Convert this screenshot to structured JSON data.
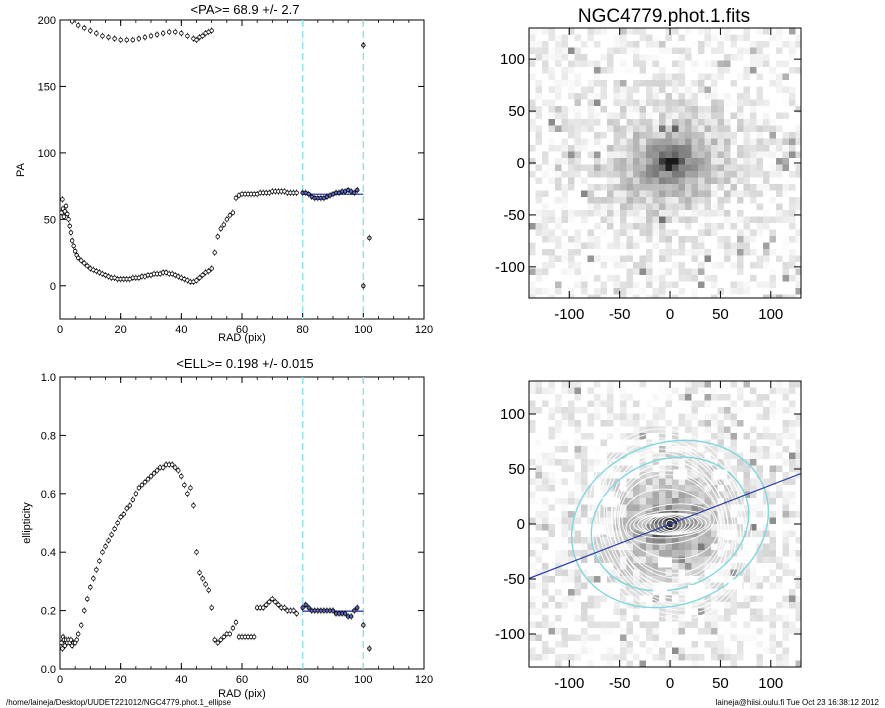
{
  "footer": {
    "left": "/home/laineja/Desktop/UUDET221012/NGC4779.phot.1_ellipse",
    "right": "laineja@hiisi.oulu.fi  Tue Oct 23 16:38:12 2012"
  },
  "colors": {
    "fit_line": "#2b3fa6",
    "guide": "#8fe3e8",
    "points": "#000000",
    "contour": "#ffffff",
    "ellipse_outline": "#7fd8dd"
  },
  "chart_data": [
    {
      "id": "pa",
      "type": "scatter",
      "title": "<PA>=  68.9 +/-   2.7",
      "xlabel": "RAD (pix)",
      "ylabel": "PA",
      "xlim": [
        0,
        120
      ],
      "ylim": [
        -25,
        200
      ],
      "xticks": [
        "0",
        "20",
        "40",
        "60",
        "80",
        "100",
        "120"
      ],
      "yticks": [
        "0",
        "50",
        "100",
        "150",
        "200"
      ],
      "vlines": [
        80,
        100
      ],
      "fit": {
        "x": [
          80,
          100
        ],
        "y": 68.9
      },
      "upper_branch": [
        [
          2,
          202
        ],
        [
          4,
          199
        ],
        [
          6,
          196
        ],
        [
          8,
          194
        ],
        [
          10,
          192
        ],
        [
          12,
          190
        ],
        [
          14,
          188
        ],
        [
          16,
          187
        ],
        [
          18,
          186
        ],
        [
          20,
          185
        ],
        [
          22,
          185
        ],
        [
          24,
          185
        ],
        [
          26,
          186
        ],
        [
          28,
          187
        ],
        [
          30,
          188
        ],
        [
          32,
          189
        ],
        [
          34,
          190
        ],
        [
          36,
          191
        ],
        [
          38,
          191
        ],
        [
          40,
          190
        ],
        [
          42,
          188
        ],
        [
          44,
          186
        ],
        [
          45,
          185
        ],
        [
          46,
          187
        ],
        [
          47,
          188
        ],
        [
          48,
          190
        ],
        [
          49,
          191
        ],
        [
          50,
          192
        ]
      ],
      "lower_branch": [
        [
          0.5,
          55
        ],
        [
          0.8,
          65
        ],
        [
          1.0,
          58
        ],
        [
          1.3,
          52
        ],
        [
          1.6,
          56
        ],
        [
          2,
          60
        ],
        [
          2.4,
          54
        ],
        [
          2.8,
          50
        ],
        [
          3.2,
          45
        ],
        [
          3.6,
          40
        ],
        [
          4,
          34
        ],
        [
          4.5,
          30
        ],
        [
          5,
          26
        ],
        [
          5.5,
          23
        ],
        [
          6,
          21
        ],
        [
          7,
          19
        ],
        [
          8,
          17
        ],
        [
          9,
          15
        ],
        [
          10,
          13
        ],
        [
          11,
          12
        ],
        [
          12,
          11
        ],
        [
          13,
          10
        ],
        [
          14,
          9
        ],
        [
          15,
          8
        ],
        [
          16,
          7
        ],
        [
          17,
          6
        ],
        [
          18,
          6
        ],
        [
          19,
          5
        ],
        [
          20,
          5
        ],
        [
          21,
          5
        ],
        [
          22,
          5
        ],
        [
          23,
          5
        ],
        [
          24,
          6
        ],
        [
          25,
          6
        ],
        [
          26,
          6
        ],
        [
          27,
          7
        ],
        [
          28,
          7
        ],
        [
          29,
          8
        ],
        [
          30,
          8
        ],
        [
          31,
          9
        ],
        [
          32,
          9
        ],
        [
          33,
          9
        ],
        [
          34,
          10
        ],
        [
          35,
          10
        ],
        [
          36,
          9
        ],
        [
          37,
          9
        ],
        [
          38,
          8
        ],
        [
          39,
          7
        ],
        [
          40,
          6
        ],
        [
          41,
          5
        ],
        [
          42,
          4
        ],
        [
          43,
          3
        ],
        [
          44,
          3
        ],
        [
          45,
          4
        ],
        [
          46,
          6
        ],
        [
          47,
          8
        ],
        [
          48,
          10
        ],
        [
          49,
          11
        ],
        [
          50,
          13
        ],
        [
          51,
          25
        ],
        [
          52,
          37
        ],
        [
          53,
          43
        ],
        [
          54,
          46
        ],
        [
          55,
          50
        ],
        [
          56,
          53
        ],
        [
          57,
          55
        ],
        [
          58,
          66
        ],
        [
          59,
          68
        ],
        [
          60,
          69
        ],
        [
          61,
          69
        ],
        [
          62,
          69
        ],
        [
          63,
          69
        ],
        [
          64,
          69
        ],
        [
          65,
          69
        ],
        [
          66,
          70
        ],
        [
          67,
          70
        ],
        [
          68,
          70
        ],
        [
          69,
          70
        ],
        [
          70,
          71
        ],
        [
          71,
          71
        ],
        [
          72,
          71
        ],
        [
          73,
          71
        ],
        [
          74,
          71
        ],
        [
          75,
          70
        ],
        [
          76,
          70
        ],
        [
          77,
          70
        ],
        [
          78,
          70
        ]
      ],
      "fit_points": [
        [
          80,
          70
        ],
        [
          81,
          70
        ],
        [
          82,
          69
        ],
        [
          83,
          67
        ],
        [
          84,
          66
        ],
        [
          85,
          66
        ],
        [
          86,
          66
        ],
        [
          87,
          66
        ],
        [
          88,
          67
        ],
        [
          89,
          68
        ],
        [
          90,
          69
        ],
        [
          91,
          70
        ],
        [
          92,
          70
        ],
        [
          93,
          71
        ],
        [
          94,
          71
        ],
        [
          95,
          72
        ],
        [
          96,
          71
        ],
        [
          97,
          70
        ],
        [
          98,
          72
        ]
      ],
      "outliers": [
        [
          100,
          0
        ],
        [
          100,
          181
        ],
        [
          102,
          36
        ]
      ]
    },
    {
      "id": "ell",
      "type": "scatter",
      "title": "<ELL>= 0.198 +/-  0.015",
      "xlabel": "RAD (pix)",
      "ylabel": "ellipticity",
      "xlim": [
        0,
        120
      ],
      "ylim": [
        0,
        1
      ],
      "xticks": [
        "0",
        "20",
        "40",
        "60",
        "80",
        "100",
        "120"
      ],
      "yticks": [
        "0.0",
        "0.2",
        "0.4",
        "0.6",
        "0.8",
        "1.0"
      ],
      "vlines": [
        80,
        100
      ],
      "fit": {
        "x": [
          80,
          100
        ],
        "y": 0.198
      },
      "points": [
        [
          0.5,
          0.09
        ],
        [
          0.8,
          0.07
        ],
        [
          1.0,
          0.11
        ],
        [
          1.3,
          0.1
        ],
        [
          1.6,
          0.08
        ],
        [
          2,
          0.1
        ],
        [
          2.4,
          0.09
        ],
        [
          2.8,
          0.1
        ],
        [
          3.2,
          0.09
        ],
        [
          3.6,
          0.1
        ],
        [
          4,
          0.08
        ],
        [
          4.5,
          0.09
        ],
        [
          5,
          0.09
        ],
        [
          5.5,
          0.1
        ],
        [
          6,
          0.12
        ],
        [
          7,
          0.15
        ],
        [
          8,
          0.2
        ],
        [
          9,
          0.24
        ],
        [
          10,
          0.28
        ],
        [
          11,
          0.31
        ],
        [
          12,
          0.34
        ],
        [
          13,
          0.37
        ],
        [
          14,
          0.4
        ],
        [
          15,
          0.42
        ],
        [
          16,
          0.44
        ],
        [
          17,
          0.46
        ],
        [
          18,
          0.48
        ],
        [
          19,
          0.5
        ],
        [
          20,
          0.52
        ],
        [
          21,
          0.53
        ],
        [
          22,
          0.55
        ],
        [
          23,
          0.56
        ],
        [
          24,
          0.58
        ],
        [
          25,
          0.6
        ],
        [
          26,
          0.62
        ],
        [
          27,
          0.63
        ],
        [
          28,
          0.64
        ],
        [
          29,
          0.65
        ],
        [
          30,
          0.66
        ],
        [
          31,
          0.67
        ],
        [
          32,
          0.68
        ],
        [
          33,
          0.69
        ],
        [
          34,
          0.69
        ],
        [
          35,
          0.7
        ],
        [
          36,
          0.7
        ],
        [
          37,
          0.7
        ],
        [
          38,
          0.69
        ],
        [
          39,
          0.68
        ],
        [
          40,
          0.66
        ],
        [
          41,
          0.63
        ],
        [
          42,
          0.6
        ],
        [
          43,
          0.62
        ],
        [
          44,
          0.56
        ],
        [
          45,
          0.4
        ],
        [
          46,
          0.33
        ],
        [
          47,
          0.31
        ],
        [
          48,
          0.29
        ],
        [
          49,
          0.27
        ],
        [
          50,
          0.21
        ],
        [
          51,
          0.1
        ],
        [
          52,
          0.09
        ],
        [
          53,
          0.1
        ],
        [
          54,
          0.11
        ],
        [
          55,
          0.12
        ],
        [
          56,
          0.12
        ],
        [
          57,
          0.14
        ],
        [
          58,
          0.16
        ],
        [
          59,
          0.11
        ],
        [
          60,
          0.11
        ],
        [
          61,
          0.11
        ],
        [
          62,
          0.11
        ],
        [
          63,
          0.11
        ],
        [
          64,
          0.11
        ],
        [
          65,
          0.21
        ],
        [
          66,
          0.21
        ],
        [
          67,
          0.21
        ],
        [
          68,
          0.22
        ],
        [
          69,
          0.23
        ],
        [
          70,
          0.24
        ],
        [
          71,
          0.23
        ],
        [
          72,
          0.22
        ],
        [
          73,
          0.21
        ],
        [
          74,
          0.21
        ],
        [
          75,
          0.2
        ],
        [
          76,
          0.2
        ],
        [
          77,
          0.2
        ],
        [
          78,
          0.19
        ]
      ],
      "fit_points": [
        [
          80,
          0.21
        ],
        [
          81,
          0.22
        ],
        [
          82,
          0.21
        ],
        [
          83,
          0.2
        ],
        [
          84,
          0.2
        ],
        [
          85,
          0.2
        ],
        [
          86,
          0.2
        ],
        [
          87,
          0.2
        ],
        [
          88,
          0.2
        ],
        [
          89,
          0.2
        ],
        [
          90,
          0.2
        ],
        [
          91,
          0.19
        ],
        [
          92,
          0.19
        ],
        [
          93,
          0.19
        ],
        [
          94,
          0.19
        ],
        [
          95,
          0.18
        ],
        [
          96,
          0.18
        ],
        [
          97,
          0.2
        ],
        [
          98,
          0.21
        ]
      ],
      "outliers": [
        [
          100,
          0.15
        ],
        [
          102,
          0.07
        ]
      ]
    },
    {
      "id": "img1",
      "type": "heatmap",
      "title": "NGC4779.phot.1.fits",
      "xlim": [
        -140,
        130
      ],
      "ylim": [
        -130,
        130
      ],
      "xticks": [
        "-100",
        "-50",
        "0",
        "50",
        "100"
      ],
      "yticks": [
        "100",
        "50",
        "0",
        "-50",
        "-100"
      ]
    },
    {
      "id": "img2",
      "type": "heatmap",
      "title": "",
      "xlim": [
        -140,
        130
      ],
      "ylim": [
        -130,
        130
      ],
      "xticks": [
        "-100",
        "-50",
        "0",
        "50",
        "100"
      ],
      "yticks": [
        "100",
        "50",
        "0",
        "-50",
        "-100"
      ],
      "pa_line_deg": 68.9
    }
  ]
}
